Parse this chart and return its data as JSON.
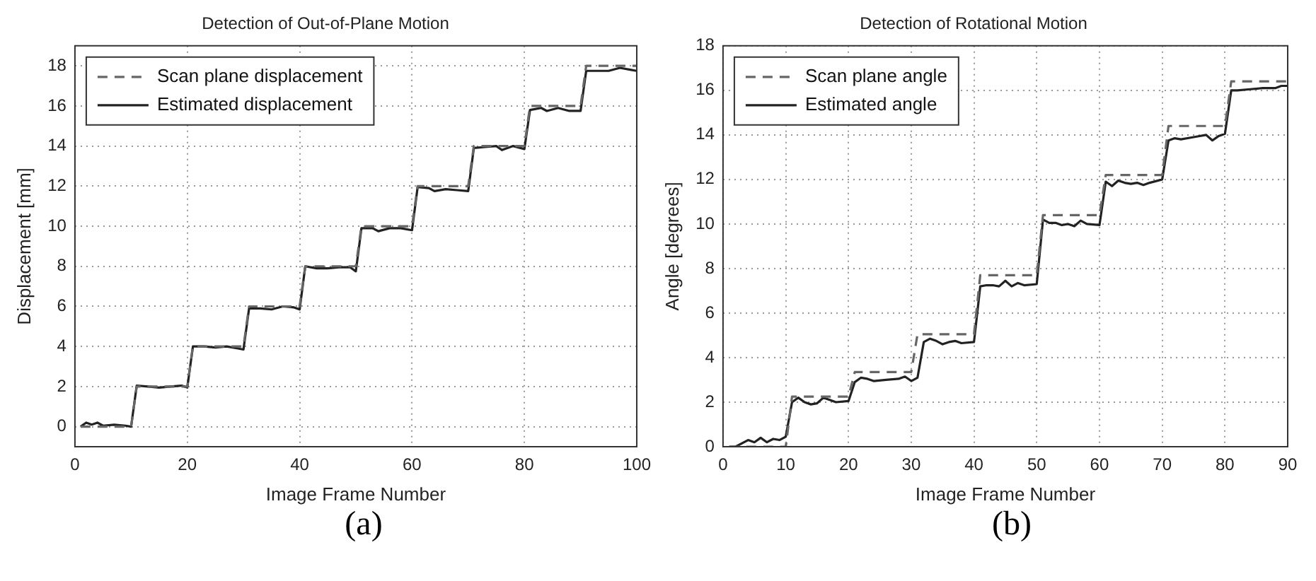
{
  "chart_data": [
    {
      "type": "line",
      "title": "Detection of Out-of-Plane Motion",
      "xlabel": "Image Frame Number",
      "ylabel": "Displacement [mm]",
      "xlim": [
        0,
        100
      ],
      "xticks": [
        0,
        20,
        40,
        60,
        80,
        100
      ],
      "ylim": [
        -1,
        19
      ],
      "yticks": [
        0,
        2,
        4,
        6,
        8,
        10,
        12,
        14,
        16,
        18
      ],
      "grid": true,
      "legend": "top left",
      "annotations": [
        "(a)"
      ],
      "series": [
        {
          "name": "Scan plane displacement",
          "color": "#666666",
          "line_style": "dashed",
          "x": [
            1,
            10,
            11,
            20,
            21,
            30,
            31,
            40,
            41,
            50,
            51,
            60,
            61,
            70,
            71,
            80,
            81,
            90,
            91,
            100
          ],
          "values": [
            0,
            0,
            2,
            2,
            4,
            4,
            6,
            6,
            8,
            8,
            10,
            10,
            12,
            12,
            14,
            14,
            16,
            16,
            18,
            18
          ]
        },
        {
          "name": "Estimated displacement",
          "color": "#222222",
          "line_style": "solid",
          "x": [
            1,
            2,
            3,
            4,
            5,
            7,
            9,
            10,
            11,
            13,
            15,
            17,
            19,
            20,
            21,
            23,
            25,
            27,
            29,
            30,
            31,
            33,
            35,
            37,
            39,
            40,
            41,
            43,
            45,
            47,
            49,
            50,
            51,
            53,
            54,
            56,
            58,
            60,
            61,
            63,
            64,
            66,
            68,
            70,
            71,
            73,
            75,
            76,
            78,
            80,
            81,
            83,
            84,
            86,
            88,
            90,
            91,
            93,
            95,
            97,
            99,
            100
          ],
          "values": [
            0,
            0.2,
            0.1,
            0.2,
            0.05,
            0.1,
            0.05,
            0,
            2.05,
            2,
            1.95,
            2,
            2.05,
            1.95,
            4,
            4,
            3.95,
            4,
            3.9,
            3.85,
            5.9,
            5.9,
            5.85,
            6,
            5.95,
            5.85,
            8,
            7.9,
            7.9,
            7.95,
            7.95,
            7.75,
            9.9,
            9.9,
            9.75,
            9.9,
            9.9,
            9.8,
            11.95,
            11.9,
            11.75,
            11.85,
            11.8,
            11.75,
            13.9,
            13.95,
            14,
            13.8,
            14,
            13.85,
            15.8,
            15.9,
            15.75,
            15.9,
            15.75,
            15.75,
            17.75,
            17.75,
            17.75,
            17.9,
            17.8,
            17.75
          ]
        }
      ]
    },
    {
      "type": "line",
      "title": "Detection of Rotational Motion",
      "xlabel": "Image Frame Number",
      "ylabel": "Angle [degrees]",
      "xlim": [
        0,
        90
      ],
      "xticks": [
        0,
        10,
        20,
        30,
        40,
        50,
        60,
        70,
        80,
        90
      ],
      "ylim": [
        0,
        18
      ],
      "yticks": [
        0,
        2,
        4,
        6,
        8,
        10,
        12,
        14,
        16,
        18
      ],
      "grid": true,
      "legend": "top left",
      "annotations": [
        "(b)"
      ],
      "series": [
        {
          "name": "Scan plane angle",
          "color": "#666666",
          "line_style": "dashed",
          "x": [
            1,
            10,
            11,
            20,
            21,
            30,
            31,
            40,
            41,
            50,
            51,
            60,
            61,
            70,
            71,
            80,
            81,
            90
          ],
          "values": [
            0,
            0,
            2.25,
            2.25,
            3.35,
            3.35,
            5.05,
            5.05,
            7.7,
            7.7,
            10.4,
            10.4,
            12.2,
            12.2,
            14.4,
            14.4,
            16.4,
            16.4
          ]
        },
        {
          "name": "Estimated angle",
          "color": "#222222",
          "line_style": "solid",
          "x": [
            1,
            2,
            4,
            5,
            6,
            7,
            8,
            9,
            10,
            11,
            12,
            13,
            14,
            15,
            16,
            17,
            18,
            20,
            21,
            22,
            23,
            24,
            26,
            28,
            29,
            30,
            31,
            32,
            33,
            34,
            35,
            36,
            37,
            38,
            40,
            41,
            42,
            43,
            44,
            45,
            46,
            47,
            48,
            50,
            51,
            52,
            53,
            54,
            55,
            56,
            57,
            58,
            60,
            61,
            62,
            63,
            64,
            65,
            66,
            67,
            68,
            70,
            71,
            72,
            73,
            75,
            77,
            78,
            79,
            80,
            81,
            82,
            84,
            86,
            88,
            89,
            90
          ],
          "values": [
            0,
            0,
            0.3,
            0.2,
            0.4,
            0.2,
            0.35,
            0.3,
            0.45,
            2,
            2.2,
            2,
            1.9,
            1.95,
            2.2,
            2.1,
            2,
            2.05,
            2.9,
            3.1,
            3.05,
            2.95,
            3,
            3.05,
            3.15,
            2.95,
            3.1,
            4.7,
            4.85,
            4.75,
            4.6,
            4.7,
            4.75,
            4.65,
            4.7,
            7.2,
            7.25,
            7.25,
            7.2,
            7.45,
            7.2,
            7.35,
            7.25,
            7.3,
            10.2,
            10.05,
            10.05,
            9.95,
            10,
            9.9,
            10.15,
            10,
            9.95,
            11.9,
            11.7,
            11.95,
            11.85,
            11.8,
            11.85,
            11.75,
            11.85,
            12,
            13.75,
            13.85,
            13.8,
            13.9,
            14,
            13.75,
            13.95,
            14.05,
            16,
            16,
            16.05,
            16.1,
            16.1,
            16.2,
            16.2
          ]
        }
      ]
    }
  ]
}
